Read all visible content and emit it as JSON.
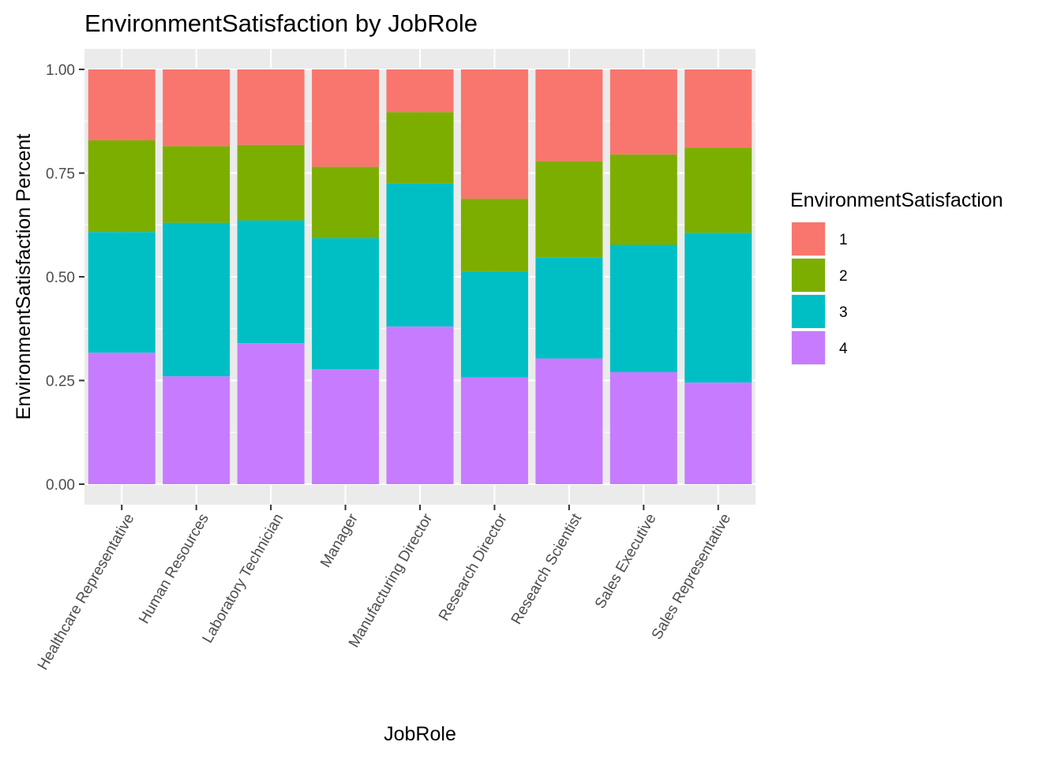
{
  "chart_data": {
    "type": "bar",
    "stacked": true,
    "title": "EnvironmentSatisfaction by JobRole",
    "xlabel": "JobRole",
    "ylabel": "EnvironmentSatisfaction Percent",
    "ylim": [
      0,
      1
    ],
    "yticks": [
      "0.00",
      "0.25",
      "0.50",
      "0.75",
      "1.00"
    ],
    "ytick_values": [
      0,
      0.25,
      0.5,
      0.75,
      1.0
    ],
    "grid": true,
    "legend_position": "right",
    "legend_title": "EnvironmentSatisfaction",
    "categories": [
      "Healthcare Representative",
      "Human Resources",
      "Laboratory Technician",
      "Manager",
      "Manufacturing Director",
      "Research Director",
      "Research Scientist",
      "Sales Executive",
      "Sales Representative"
    ],
    "series": [
      {
        "name": "1",
        "color": "#F8766D",
        "values": [
          0.171,
          0.185,
          0.182,
          0.235,
          0.103,
          0.312,
          0.221,
          0.205,
          0.189
        ]
      },
      {
        "name": "2",
        "color": "#7CAE00",
        "values": [
          0.221,
          0.185,
          0.182,
          0.172,
          0.172,
          0.175,
          0.232,
          0.218,
          0.205
        ]
      },
      {
        "name": "3",
        "color": "#00BFC4",
        "values": [
          0.291,
          0.37,
          0.296,
          0.316,
          0.345,
          0.256,
          0.244,
          0.307,
          0.361
        ]
      },
      {
        "name": "4",
        "color": "#C77CFF",
        "values": [
          0.317,
          0.26,
          0.34,
          0.277,
          0.38,
          0.257,
          0.303,
          0.27,
          0.245
        ]
      }
    ]
  }
}
